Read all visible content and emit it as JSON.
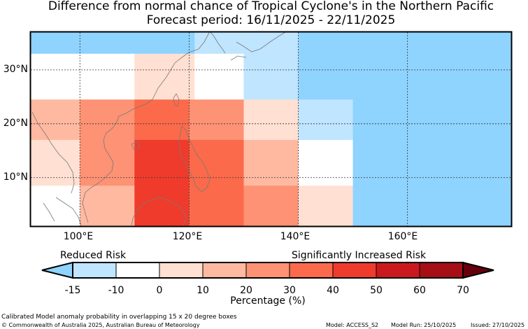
{
  "title": {
    "line1": "Difference from normal chance of Tropical Cyclone's in the Northern Pacific",
    "line2": "Forecast period: 16/11/2025 - 22/11/2025"
  },
  "map": {
    "lon_range": [
      91,
      179
    ],
    "lat_range": [
      1,
      37
    ],
    "lat_labels": [
      "30°N",
      "20°N",
      "10°N"
    ],
    "lon_labels": [
      "100°E",
      "120°E",
      "140°E",
      "160°E"
    ],
    "cells": [
      {
        "lon0": 91,
        "lon1": 121,
        "lat0": 33,
        "lat1": 37,
        "value": -15
      },
      {
        "lon0": 121,
        "lon1": 140,
        "lat0": 33,
        "lat1": 37,
        "value": -10
      },
      {
        "lon0": 140,
        "lon1": 179,
        "lat0": 33,
        "lat1": 37,
        "value": -15
      },
      {
        "lon0": 91,
        "lon1": 110,
        "lat0": 24.5,
        "lat1": 33,
        "value": 0
      },
      {
        "lon0": 110,
        "lon1": 121,
        "lat0": 24.5,
        "lat1": 33,
        "value": 10
      },
      {
        "lon0": 121,
        "lon1": 130,
        "lat0": 24.5,
        "lat1": 33,
        "value": 0
      },
      {
        "lon0": 130,
        "lon1": 140,
        "lat0": 24.5,
        "lat1": 33,
        "value": -10
      },
      {
        "lon0": 140,
        "lon1": 179,
        "lat0": 24.5,
        "lat1": 33,
        "value": -15
      },
      {
        "lon0": 91,
        "lon1": 100,
        "lat0": 17,
        "lat1": 24.5,
        "value": 20
      },
      {
        "lon0": 100,
        "lon1": 110,
        "lat0": 17,
        "lat1": 24.5,
        "value": 30
      },
      {
        "lon0": 110,
        "lon1": 120,
        "lat0": 17,
        "lat1": 24.5,
        "value": 40
      },
      {
        "lon0": 120,
        "lon1": 130,
        "lat0": 17,
        "lat1": 24.5,
        "value": 30
      },
      {
        "lon0": 130,
        "lon1": 140,
        "lat0": 17,
        "lat1": 24.5,
        "value": 10
      },
      {
        "lon0": 140,
        "lon1": 150,
        "lat0": 17,
        "lat1": 24.5,
        "value": -10
      },
      {
        "lon0": 150,
        "lon1": 179,
        "lat0": 17,
        "lat1": 24.5,
        "value": -15
      },
      {
        "lon0": 91,
        "lon1": 100,
        "lat0": 8.5,
        "lat1": 17,
        "value": 10
      },
      {
        "lon0": 100,
        "lon1": 110,
        "lat0": 8.5,
        "lat1": 17,
        "value": 30
      },
      {
        "lon0": 110,
        "lon1": 120,
        "lat0": 8.5,
        "lat1": 17,
        "value": 50
      },
      {
        "lon0": 120,
        "lon1": 130,
        "lat0": 8.5,
        "lat1": 17,
        "value": 40
      },
      {
        "lon0": 130,
        "lon1": 140,
        "lat0": 8.5,
        "lat1": 17,
        "value": 20
      },
      {
        "lon0": 140,
        "lon1": 150,
        "lat0": 8.5,
        "lat1": 17,
        "value": 0
      },
      {
        "lon0": 150,
        "lon1": 179,
        "lat0": 8.5,
        "lat1": 17,
        "value": -15
      },
      {
        "lon0": 91,
        "lon1": 100,
        "lat0": 1,
        "lat1": 8.5,
        "value": 0
      },
      {
        "lon0": 100,
        "lon1": 110,
        "lat0": 1,
        "lat1": 8.5,
        "value": 20
      },
      {
        "lon0": 110,
        "lon1": 120,
        "lat0": 1,
        "lat1": 8.5,
        "value": 50
      },
      {
        "lon0": 120,
        "lon1": 130,
        "lat0": 1,
        "lat1": 8.5,
        "value": 40
      },
      {
        "lon0": 130,
        "lon1": 140,
        "lat0": 1,
        "lat1": 8.5,
        "value": 30
      },
      {
        "lon0": 140,
        "lon1": 150,
        "lat0": 1,
        "lat1": 8.5,
        "value": 10
      },
      {
        "lon0": 150,
        "lon1": 179,
        "lat0": 1,
        "lat1": 8.5,
        "value": -15
      }
    ]
  },
  "colorbar": {
    "left_label": "Reduced Risk",
    "right_label": "Significantly Increased Risk",
    "ticks": [
      "-15",
      "-10",
      "0",
      "10",
      "20",
      "30",
      "40",
      "50",
      "60",
      "70"
    ],
    "bins": [
      {
        "value": -15,
        "color": "#8fd3ff"
      },
      {
        "value": -10,
        "color": "#bfe5ff"
      },
      {
        "value": 0,
        "color": "#ffffff"
      },
      {
        "value": 10,
        "color": "#ffe0d2"
      },
      {
        "value": 20,
        "color": "#feb9a0"
      },
      {
        "value": 30,
        "color": "#fd9274"
      },
      {
        "value": 40,
        "color": "#fb6a4a"
      },
      {
        "value": 50,
        "color": "#ef3b2c"
      },
      {
        "value": 60,
        "color": "#cb181d"
      },
      {
        "value": 70,
        "color": "#a50f15"
      },
      {
        "value": 80,
        "color": "#67000d"
      }
    ],
    "axis_label": "Percentage (%)"
  },
  "footer": {
    "note": "Calibrated Model anomaly probability in overlapping 15 x 20 degree boxes",
    "copyright": "© Commonwealth of Australia 2025, Australian Bureau of Meteorology",
    "model": "Model: ACCESS_S2",
    "model_run": "Model Run: 25/10/2025",
    "issued": "Issued: 27/10/2025"
  }
}
